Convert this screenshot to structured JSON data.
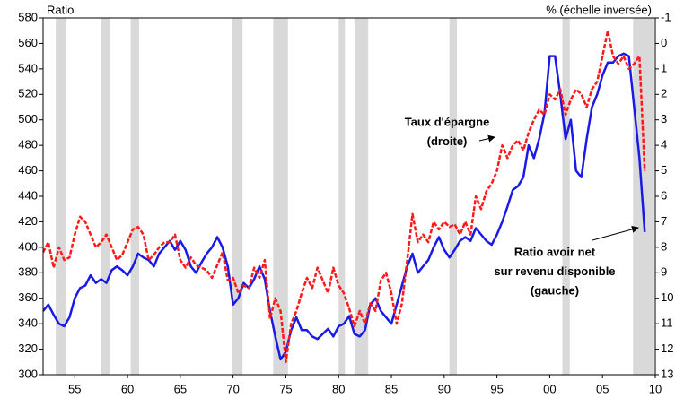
{
  "chart_data": {
    "type": "line",
    "y_label": "Ratio",
    "y2_label": "% (échelle inversée)",
    "xlim": [
      1952,
      2010
    ],
    "xticks": [
      {
        "value": 1955,
        "label": "55"
      },
      {
        "value": 1960,
        "label": "60"
      },
      {
        "value": 1965,
        "label": "65"
      },
      {
        "value": 1970,
        "label": "70"
      },
      {
        "value": 1975,
        "label": "75"
      },
      {
        "value": 1980,
        "label": "80"
      },
      {
        "value": 1985,
        "label": "85"
      },
      {
        "value": 1990,
        "label": "90"
      },
      {
        "value": 1995,
        "label": "95"
      },
      {
        "value": 2000,
        "label": "00"
      },
      {
        "value": 2005,
        "label": "05"
      },
      {
        "value": 2010,
        "label": "10"
      }
    ],
    "ylim": [
      300,
      580
    ],
    "yticks": [
      300,
      320,
      340,
      360,
      380,
      400,
      420,
      440,
      460,
      480,
      500,
      520,
      540,
      560,
      580
    ],
    "y2lim": [
      13,
      -1
    ],
    "y2ticks": [
      -1,
      0,
      1,
      2,
      3,
      4,
      5,
      6,
      7,
      8,
      9,
      10,
      11,
      12,
      13
    ],
    "grid": false,
    "shaded_periods": [
      [
        1953.2,
        1954.2
      ],
      [
        1957.5,
        1958.3
      ],
      [
        1960.3,
        1961.1
      ],
      [
        1969.9,
        1970.9
      ],
      [
        1973.8,
        1975.2
      ],
      [
        1980.0,
        1980.6
      ],
      [
        1981.5,
        1982.8
      ],
      [
        1990.5,
        1991.2
      ],
      [
        2001.2,
        2001.9
      ],
      [
        2007.9,
        2009.9
      ]
    ],
    "shade_color": "#d9d9d9",
    "annotations": [
      {
        "lines": [
          "Taux d'épargne",
          "(droite)"
        ]
      },
      {
        "lines": [
          "Ratio avoir net",
          "sur revenu disponible",
          "(gauche)"
        ]
      }
    ],
    "x": [
      1952,
      1952.5,
      1953,
      1953.5,
      1954,
      1954.5,
      1955,
      1955.5,
      1956,
      1956.5,
      1957,
      1957.5,
      1958,
      1958.5,
      1959,
      1959.5,
      1960,
      1960.5,
      1961,
      1961.5,
      1962,
      1962.5,
      1963,
      1963.5,
      1964,
      1964.5,
      1965,
      1965.5,
      1966,
      1966.5,
      1967,
      1967.5,
      1968,
      1968.5,
      1969,
      1969.5,
      1970,
      1970.5,
      1971,
      1971.5,
      1972,
      1972.5,
      1973,
      1973.5,
      1974,
      1974.5,
      1975,
      1975.5,
      1976,
      1976.5,
      1977,
      1977.5,
      1978,
      1978.5,
      1979,
      1979.5,
      1980,
      1980.5,
      1981,
      1981.5,
      1982,
      1982.5,
      1983,
      1983.5,
      1984,
      1984.5,
      1985,
      1985.5,
      1986,
      1986.5,
      1987,
      1987.5,
      1988,
      1988.5,
      1989,
      1989.5,
      1990,
      1990.5,
      1991,
      1991.5,
      1992,
      1992.5,
      1993,
      1993.5,
      1994,
      1994.5,
      1995,
      1995.5,
      1996,
      1996.5,
      1997,
      1997.5,
      1998,
      1998.5,
      1999,
      1999.5,
      2000,
      2000.5,
      2001,
      2001.5,
      2002,
      2002.5,
      2003,
      2003.5,
      2004,
      2004.5,
      2005,
      2005.5,
      2006,
      2006.5,
      2007,
      2007.5,
      2008,
      2008.5,
      2009
    ],
    "series": [
      {
        "color": "#1a1ae6",
        "style": "solid",
        "axis": "y",
        "values": [
          350,
          355,
          347,
          340,
          338,
          345,
          360,
          368,
          370,
          378,
          372,
          375,
          372,
          382,
          385,
          382,
          378,
          385,
          395,
          392,
          390,
          385,
          395,
          400,
          405,
          398,
          405,
          398,
          385,
          380,
          388,
          395,
          400,
          408,
          400,
          385,
          355,
          360,
          372,
          368,
          375,
          385,
          375,
          350,
          330,
          312,
          318,
          335,
          345,
          335,
          335,
          330,
          328,
          332,
          336,
          330,
          338,
          340,
          346,
          332,
          330,
          335,
          355,
          360,
          350,
          345,
          340,
          355,
          370,
          385,
          395,
          380,
          385,
          390,
          400,
          408,
          398,
          392,
          398,
          405,
          408,
          405,
          415,
          410,
          405,
          402,
          410,
          420,
          432,
          445,
          448,
          455,
          480,
          470,
          485,
          505,
          550,
          550,
          520,
          485,
          500,
          460,
          455,
          485,
          510,
          520,
          535,
          545,
          545,
          550,
          552,
          550,
          510,
          470,
          412
        ]
      },
      {
        "color": "#ff1a1a",
        "style": "dashed",
        "axis": "y2",
        "values": [
          8.2,
          7.8,
          8.8,
          8.0,
          8.5,
          8.4,
          7.5,
          6.8,
          7.0,
          7.5,
          8.0,
          7.8,
          7.5,
          8.0,
          8.5,
          8.3,
          7.8,
          7.3,
          7.2,
          7.5,
          8.5,
          8.3,
          8.0,
          7.8,
          7.8,
          7.5,
          8.5,
          8.8,
          8.4,
          8.7,
          8.8,
          8.9,
          9.2,
          8.7,
          8.2,
          9.3,
          9.2,
          9.8,
          9.5,
          9.6,
          8.8,
          9.2,
          8.5,
          10.8,
          10.0,
          10.5,
          12.5,
          11.0,
          10.5,
          9.8,
          9.2,
          9.6,
          8.8,
          9.3,
          9.8,
          8.8,
          9.5,
          9.8,
          10.4,
          11.1,
          10.5,
          11.0,
          10.2,
          10.5,
          9.3,
          9.0,
          9.8,
          11.0,
          10.2,
          8.5,
          6.7,
          7.8,
          7.5,
          7.8,
          7.0,
          7.3,
          7.0,
          7.2,
          7.1,
          7.5,
          7.0,
          7.5,
          6.0,
          6.5,
          5.8,
          5.5,
          5.0,
          4.0,
          4.5,
          4.0,
          3.8,
          4.2,
          3.5,
          3.0,
          2.6,
          2.8,
          2.0,
          2.2,
          1.8,
          2.8,
          2.2,
          1.8,
          2.0,
          2.5,
          1.8,
          1.5,
          0.5,
          -0.5,
          0.5,
          0.8,
          0.5,
          1.0,
          0.8,
          0.5,
          5.0
        ]
      }
    ]
  }
}
